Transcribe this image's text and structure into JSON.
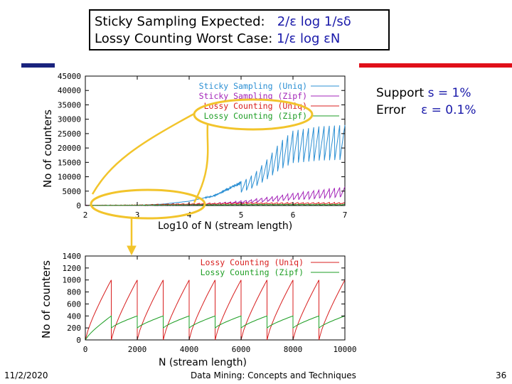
{
  "header": {
    "line1_label": "Sticky Sampling Expected:",
    "line1_formula": "2/ε log 1/sδ",
    "line2_label": "Lossy Counting Worst Case:",
    "line2_formula": "1/ε log εN"
  },
  "support": {
    "support_label": "Support",
    "support_value": "s = 1%",
    "error_label": "Error",
    "error_value": "ε = 0.1%"
  },
  "footer": {
    "date": "11/2/2020",
    "course": "Data Mining: Concepts and Techniques",
    "page": "36"
  },
  "colors": {
    "sticky_uniq": "#2b8fd3",
    "sticky_zipf": "#a323b8",
    "lossy_uniq": "#d81f1f",
    "lossy_zipf": "#1e9e24",
    "highlight": "#f2c42b",
    "brand_blue": "#1a237e",
    "brand_red": "#e0101a"
  },
  "chart_data": [
    {
      "type": "line",
      "title": "",
      "xlabel": "Log10 of N (stream length)",
      "ylabel": "No of counters",
      "xlim": [
        2,
        7
      ],
      "ylim": [
        0,
        45000
      ],
      "x_ticks": [
        "2",
        "3",
        "4",
        "5",
        "6",
        "7"
      ],
      "y_ticks": [
        "0",
        "5000",
        "10000",
        "15000",
        "20000",
        "25000",
        "30000",
        "35000",
        "40000",
        "45000"
      ],
      "series": [
        {
          "name": "Sticky Sampling (Uniq)",
          "x": [
            2,
            3,
            3.5,
            4,
            4.5,
            5,
            5.25,
            5.5,
            5.75,
            6,
            6.5,
            7
          ],
          "values": [
            0,
            50,
            500,
            1500,
            3500,
            8000,
            11000,
            16000,
            22000,
            26000,
            27500,
            28000
          ]
        },
        {
          "name": "Sticky Sampling (Zipf)",
          "x": [
            2,
            3,
            4,
            4.5,
            5,
            5.5,
            6,
            6.5,
            7
          ],
          "values": [
            0,
            50,
            300,
            800,
            1600,
            2800,
            4200,
            5400,
            6500
          ]
        },
        {
          "name": "Lossy Counting (Uniq)",
          "x": [
            2,
            3,
            4,
            5,
            6,
            7
          ],
          "values": [
            0,
            200,
            700,
            1000,
            1000,
            1000
          ]
        },
        {
          "name": "Lossy Counting (Zipf)",
          "x": [
            2,
            3,
            4,
            5,
            6,
            7
          ],
          "values": [
            0,
            100,
            300,
            400,
            400,
            400
          ]
        }
      ]
    },
    {
      "type": "line",
      "title": "",
      "xlabel": "N (stream length)",
      "ylabel": "No of counters",
      "xlim": [
        0,
        10000
      ],
      "ylim": [
        0,
        1400
      ],
      "x_ticks": [
        "0",
        "2000",
        "4000",
        "6000",
        "8000",
        "10000"
      ],
      "y_ticks": [
        "0",
        "200",
        "400",
        "600",
        "800",
        "1000",
        "1200",
        "1400"
      ],
      "series": [
        {
          "name": "Lossy Counting (Uniq)",
          "period": 1000,
          "peak": 1000
        },
        {
          "name": "Lossy Counting (Zipf)",
          "period": 1000,
          "peak": 400
        }
      ]
    }
  ]
}
